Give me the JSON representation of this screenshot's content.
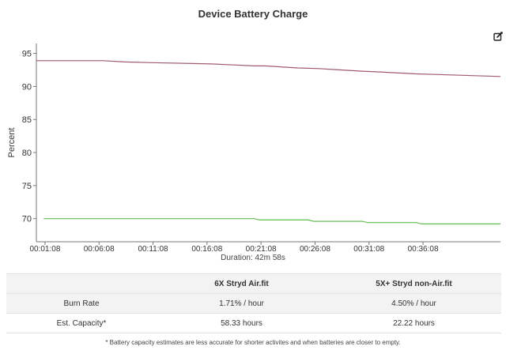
{
  "chart_data": {
    "type": "line",
    "title": "Device Battery Charge",
    "ylabel": "Percent",
    "xlabel": "Duration: 42m 58s",
    "ylim": [
      66.5,
      96.5
    ],
    "yticks": [
      70,
      75,
      80,
      85,
      90,
      95
    ],
    "xlim_minutes": [
      0.33,
      43.3
    ],
    "x_tick_labels": [
      "00:01:08",
      "00:06:08",
      "00:11:08",
      "00:16:08",
      "00:21:08",
      "00:26:08",
      "00:31:08",
      "00:36:08"
    ],
    "x_tick_minutes": [
      1.13,
      6.13,
      11.13,
      16.13,
      21.13,
      26.13,
      31.13,
      36.13
    ],
    "grid": false,
    "series": [
      {
        "color": "#a05a6a",
        "x_minutes": [
          0.33,
          6.5,
          8.5,
          11,
          16.5,
          18,
          20.5,
          21.5,
          24.5,
          26.5,
          28.5,
          30.5,
          32,
          35.5,
          37.5,
          39.5,
          43.3
        ],
        "values": [
          93.9,
          93.9,
          93.7,
          93.6,
          93.4,
          93.3,
          93.1,
          93.1,
          92.8,
          92.7,
          92.5,
          92.3,
          92.2,
          91.9,
          91.8,
          91.7,
          91.5
        ]
      },
      {
        "color": "#66bb55",
        "x_minutes": [
          1,
          20.5,
          21,
          25.5,
          26,
          30.5,
          31,
          35.5,
          36,
          43.3
        ],
        "values": [
          70.0,
          70.0,
          69.8,
          69.8,
          69.6,
          69.6,
          69.4,
          69.4,
          69.2,
          69.2
        ]
      }
    ]
  },
  "table": {
    "headers": [
      "",
      "6X Stryd Air.fit",
      "5X+ Stryd non-Air.fit"
    ],
    "rows": [
      [
        "Burn Rate",
        "1.71% / hour",
        "4.50% / hour"
      ],
      [
        "Est. Capacity*",
        "58.33 hours",
        "22.22 hours"
      ]
    ]
  },
  "footnote": "* Battery capacity estimates are less accurate for shorter activites and when batteries are closer to empty.",
  "icons": {
    "edit": "edit-square-icon"
  }
}
